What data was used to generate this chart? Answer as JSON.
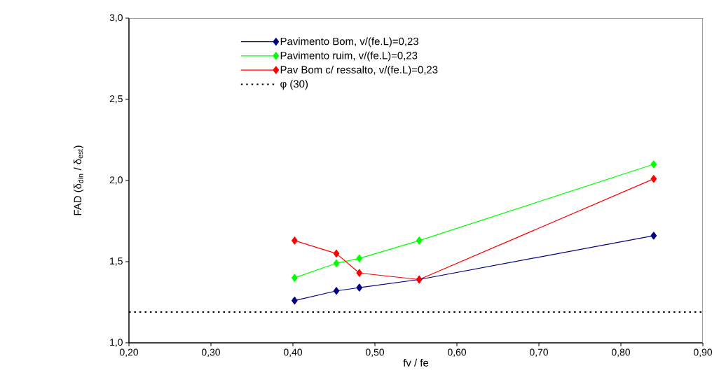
{
  "chart_data": {
    "type": "line",
    "xlabel": "fv / fe",
    "ylabel": "FAD (δ$_{din}$ / δ$_{est}$)",
    "xlim": [
      0.2,
      0.9
    ],
    "ylim": [
      1.0,
      3.0
    ],
    "xticks": [
      {
        "value": 0.2,
        "label": "0,20"
      },
      {
        "value": 0.3,
        "label": "0,30"
      },
      {
        "value": 0.4,
        "label": "0,40"
      },
      {
        "value": 0.5,
        "label": "0,50"
      },
      {
        "value": 0.6,
        "label": "0,60"
      },
      {
        "value": 0.7,
        "label": "0,70"
      },
      {
        "value": 0.8,
        "label": "0,80"
      },
      {
        "value": 0.9,
        "label": "0,90"
      }
    ],
    "yticks": [
      {
        "value": 1.0,
        "label": "1,0"
      },
      {
        "value": 1.5,
        "label": "1,5"
      },
      {
        "value": 2.0,
        "label": "2,0"
      },
      {
        "value": 2.5,
        "label": "2,5"
      },
      {
        "value": 3.0,
        "label": "3,0"
      }
    ],
    "x": [
      0.402,
      0.453,
      0.481,
      0.554,
      0.84
    ],
    "series": [
      {
        "name": "Pavimento Bom, v/(fe.L)=0,23",
        "color": "#000080",
        "values": [
          1.26,
          1.32,
          1.34,
          1.39,
          1.66
        ]
      },
      {
        "name": "Pavimento ruim, v/(fe.L)=0,23",
        "color": "#00ff00",
        "values": [
          1.4,
          1.49,
          1.52,
          1.63,
          2.1
        ]
      },
      {
        "name": "Pav Bom c/ ressalto, v/(fe.L)=0,23",
        "color": "#ff0000",
        "values": [
          1.63,
          1.55,
          1.43,
          1.39,
          2.01
        ]
      },
      {
        "name": "φ (30)",
        "color": "#000000",
        "x": [
          0.2,
          0.9
        ],
        "values": [
          1.19,
          1.19
        ],
        "marker": "none",
        "line_style": "dotted"
      }
    ],
    "marker": "diamond",
    "line_style": "solid",
    "grid": false,
    "legend": "top left"
  }
}
